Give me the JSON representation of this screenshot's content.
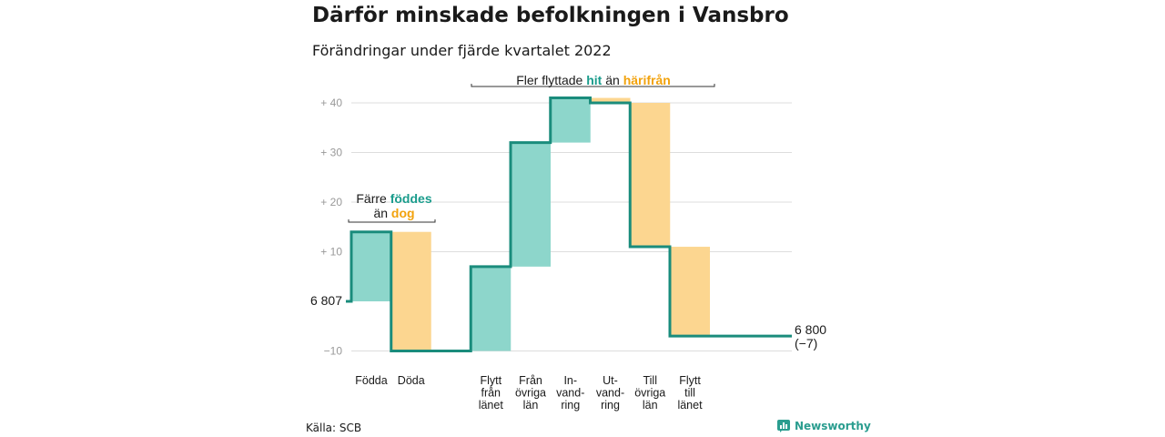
{
  "title": "Därför minskade befolkningen i Vansbro",
  "subtitle": "Förändringar under fjärde kvartalet 2022",
  "source": "Källa: SCB",
  "logo": "Newsworthy",
  "colors": {
    "increase": "#8dd6cb",
    "decrease": "#fcd690",
    "line": "#1a8c7c",
    "teal_text": "#1a9c8c",
    "orange_text": "#f2a20c",
    "grid": "#dddddd"
  },
  "annotations": {
    "left": {
      "line1_pre": "Färre ",
      "line1_hl": "föddes",
      "line2_pre": "än ",
      "line2_hl": "dog"
    },
    "top": {
      "pre": "Fler flyttade ",
      "hl1": "hit",
      "mid": " än ",
      "hl2": "härifrån"
    }
  },
  "chart_data": {
    "type": "waterfall",
    "start_label": "6 807",
    "end_label": "6 800",
    "end_change": "(−7)",
    "ylim": [
      -11,
      42
    ],
    "yticks": [
      {
        "value": 40,
        "label": "+ 40"
      },
      {
        "value": 30,
        "label": "+ 30"
      },
      {
        "value": 20,
        "label": "+ 20"
      },
      {
        "value": 10,
        "label": "+ 10"
      },
      {
        "value": -10,
        "label": "−10"
      }
    ],
    "steps": [
      {
        "label": [
          "Födda"
        ],
        "change": 14,
        "from": 0,
        "to": 14
      },
      {
        "label": [
          "Döda"
        ],
        "change": -24,
        "from": 14,
        "to": -10
      },
      {
        "label": [
          "Flytt",
          "från",
          "länet"
        ],
        "change": 17,
        "from": -10,
        "to": 7
      },
      {
        "label": [
          "Från",
          "övriga",
          "län"
        ],
        "change": 25,
        "from": 7,
        "to": 32
      },
      {
        "label": [
          "In-",
          "vand-",
          "ring"
        ],
        "change": 9,
        "from": 32,
        "to": 41
      },
      {
        "label": [
          "Ut-",
          "vand-",
          "ring"
        ],
        "change": -1,
        "from": 41,
        "to": 40
      },
      {
        "label": [
          "Till",
          "övriga",
          "län"
        ],
        "change": -29,
        "from": 40,
        "to": 11
      },
      {
        "label": [
          "Flytt",
          "till",
          "länet"
        ],
        "change": -18,
        "from": 11,
        "to": -7
      }
    ]
  }
}
